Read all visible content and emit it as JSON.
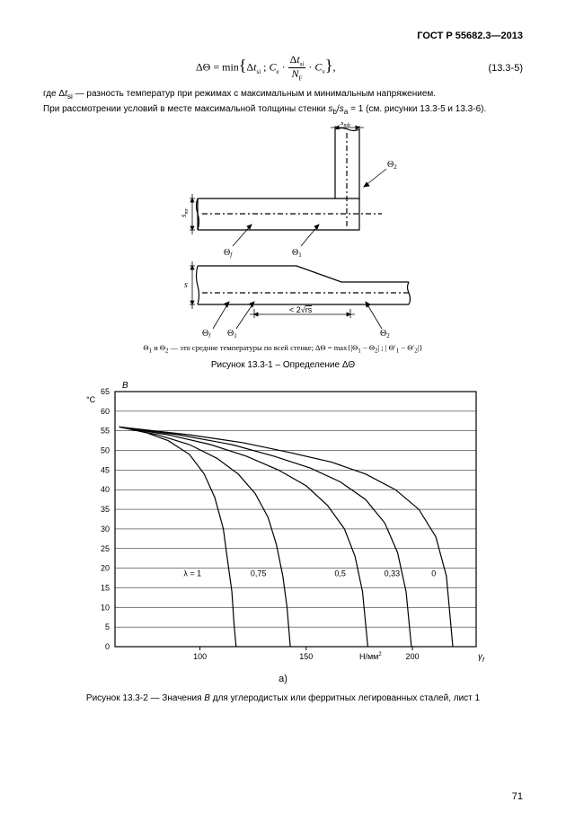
{
  "header": {
    "doc_id": "ГОСТ Р 55682.3—2013"
  },
  "formula": {
    "text_html": "ΔΘ = min{Δt<sub>si</sub> ; C<sub>e</sub> · (Δt<sub>si</sub> / N<sub>F</sub>) · C<sub>v</sub>},",
    "number": "(13.3-5)"
  },
  "para1": "где Δt<sub>si</sub> — разность температур при режимах с максимальным и минимальным напряжением.",
  "para2": "При рассмотрении условий в месте максимальной толщины стенки s<sub>b</sub>/s<sub>a</sub> = 1 (см. рисунки 13.3-5 и 13.3-6).",
  "diagram1": {
    "labels": {
      "s_mb": "s",
      "s_mb_sub": "mb",
      "s_mr": "s",
      "s_mr_sub": "mr",
      "theta_f": "Θ",
      "theta_f_sub": "f",
      "theta_1": "Θ",
      "theta_1_sub": "1",
      "theta_2": "Θ",
      "theta_2_sub": "2",
      "s": "s",
      "slope": "< 2√rs"
    }
  },
  "note": "Θ<sub>1</sub> и Θ<sub>2</sub> — это средние температуры по всей стенке; ΔΘ = max{|Θ<sub>1</sub> − Θ<sub>2</sub>| ; |Θ′<sub>1</sub> − Θ′<sub>2</sub>|}",
  "fig1_caption": "Рисунок 13.3-1 – Определение ΔΘ",
  "chart": {
    "y_title": "B",
    "y_unit": "°C",
    "x_unit": "Н/мм",
    "x_unit_sup": "2",
    "gamma": "γ",
    "gamma_sub": "f",
    "y_ticks": [
      65,
      60,
      55,
      50,
      45,
      40,
      35,
      30,
      25,
      20,
      15,
      10,
      5,
      0
    ],
    "x_ticks": [
      100,
      150,
      200
    ],
    "y_min": 0,
    "y_max": 65,
    "x_min": 60,
    "x_max": 230,
    "grid_color": "#000000",
    "bg_color": "#ffffff",
    "line_color": "#000000",
    "line_width": 1.2,
    "font_size_ticks": 9,
    "curve_labels": [
      {
        "text": "λ = 1",
        "x": 96.5,
        "y": 18
      },
      {
        "text": "0,75",
        "x": 127.5,
        "y": 18
      },
      {
        "text": "0,5",
        "x": 166,
        "y": 18
      },
      {
        "text": "0,33",
        "x": 190.4,
        "y": 18
      },
      {
        "text": "0",
        "x": 210,
        "y": 18
      }
    ],
    "curves": [
      {
        "label": "λ=1",
        "pts": [
          [
            62,
            56
          ],
          [
            75,
            54.5
          ],
          [
            85,
            52.5
          ],
          [
            95,
            49
          ],
          [
            102,
            44
          ],
          [
            107,
            38
          ],
          [
            111,
            30
          ],
          [
            113,
            22
          ],
          [
            115,
            14
          ],
          [
            116,
            6
          ],
          [
            117,
            0
          ]
        ]
      },
      {
        "label": "0.75",
        "pts": [
          [
            62,
            56
          ],
          [
            80,
            54
          ],
          [
            95,
            51.5
          ],
          [
            108,
            48
          ],
          [
            118,
            44
          ],
          [
            126,
            39
          ],
          [
            132,
            33
          ],
          [
            136,
            26
          ],
          [
            139,
            18
          ],
          [
            141,
            10
          ],
          [
            142.5,
            0
          ]
        ]
      },
      {
        "label": "0.5",
        "pts": [
          [
            62,
            56
          ],
          [
            85,
            54
          ],
          [
            105,
            51.5
          ],
          [
            122,
            48.5
          ],
          [
            137,
            45
          ],
          [
            150,
            41
          ],
          [
            160,
            36
          ],
          [
            168,
            30
          ],
          [
            173,
            23
          ],
          [
            176.5,
            14
          ],
          [
            179,
            0
          ]
        ]
      },
      {
        "label": "0.33",
        "pts": [
          [
            62,
            56
          ],
          [
            90,
            54
          ],
          [
            115,
            51.5
          ],
          [
            135,
            48.5
          ],
          [
            152,
            45.5
          ],
          [
            166,
            42
          ],
          [
            178,
            37.5
          ],
          [
            187,
            31.5
          ],
          [
            193,
            24
          ],
          [
            197,
            14
          ],
          [
            199.5,
            0
          ]
        ]
      },
      {
        "label": "0",
        "pts": [
          [
            62,
            56
          ],
          [
            95,
            54
          ],
          [
            120,
            52
          ],
          [
            142,
            49.5
          ],
          [
            162,
            47
          ],
          [
            178,
            44
          ],
          [
            192,
            40
          ],
          [
            203,
            35
          ],
          [
            211,
            28
          ],
          [
            216,
            18
          ],
          [
            219,
            0
          ]
        ]
      }
    ]
  },
  "label_a": "a)",
  "fig2_caption": "Рисунок 13.3-2 — Значения <i>B</i> для углеродистых или ферритных легированных сталей, лист 1",
  "page_number": "71"
}
